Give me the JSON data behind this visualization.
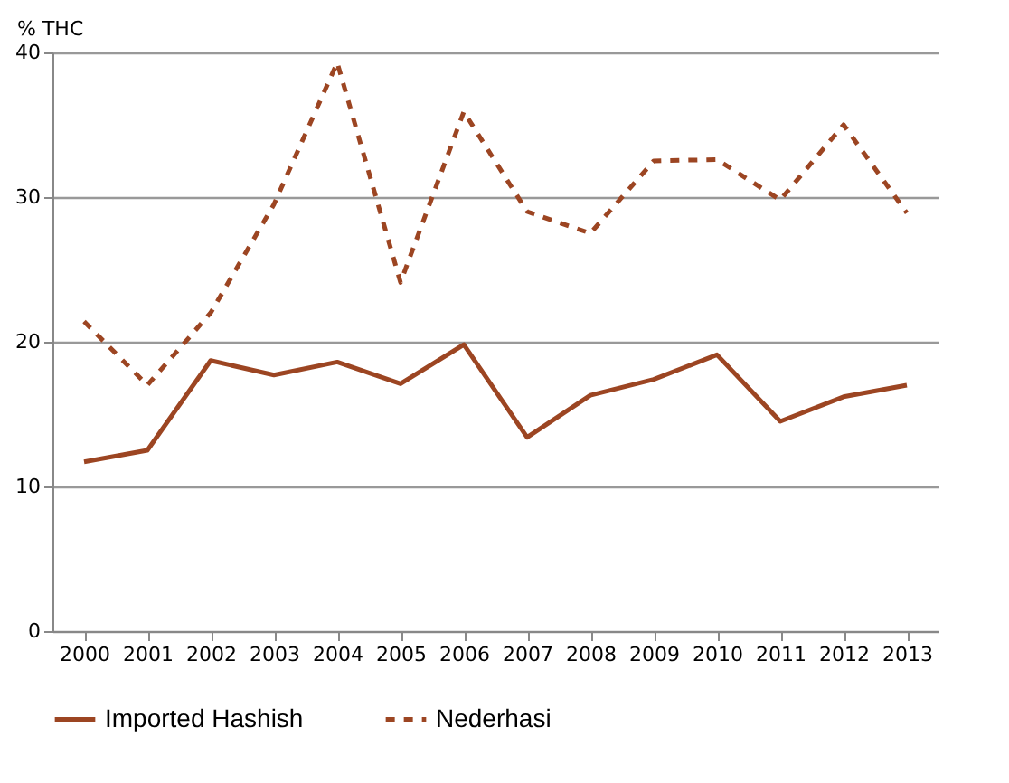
{
  "chart_data": {
    "type": "line",
    "ylabel": "% THC",
    "categories": [
      "2000",
      "2001",
      "2002",
      "2003",
      "2004",
      "2005",
      "2006",
      "2007",
      "2008",
      "2009",
      "2010",
      "2011",
      "2012",
      "2013"
    ],
    "series": [
      {
        "name": "Imported Hashish",
        "color": "#9c4522",
        "line_style": "solid",
        "values": [
          11.7,
          12.5,
          18.7,
          17.7,
          18.6,
          17.1,
          19.8,
          13.4,
          16.3,
          17.4,
          19.1,
          14.5,
          16.2,
          17.0
        ]
      },
      {
        "name": "Nederhasi",
        "color": "#9c4522",
        "line_style": "dashed",
        "values": [
          21.4,
          17.0,
          22.0,
          29.5,
          39.3,
          24.1,
          35.9,
          29.0,
          27.5,
          32.5,
          32.6,
          29.8,
          35.0,
          28.9
        ]
      }
    ],
    "ylim": [
      0,
      40
    ],
    "yticks": [
      0,
      10,
      20,
      30,
      40
    ],
    "grid": "y",
    "legend": "bottom",
    "marker": "none"
  }
}
